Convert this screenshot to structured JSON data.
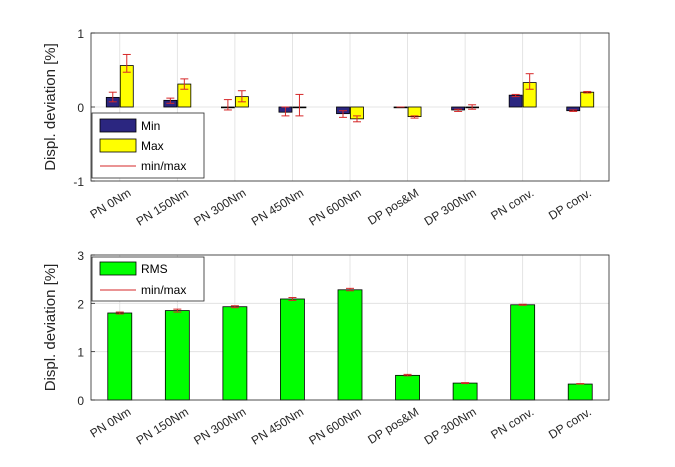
{
  "colors": {
    "min": "#2b2680",
    "max": "#ffff00",
    "rms": "#00ff00",
    "errbar": "#d62728",
    "grid": "#dedede",
    "axis": "#262626"
  },
  "chart_data": [
    {
      "type": "bar",
      "ylabel": "Displ. deviation [%]",
      "ylim": [
        -1,
        1
      ],
      "yticks": [
        "-1",
        "0",
        "1"
      ],
      "grid": true,
      "legend_position": "lower-left",
      "categories": [
        "PN 0Nm",
        "PN 150Nm",
        "PN 300Nm",
        "PN 450Nm",
        "PN 600Nm",
        "DP pos&M",
        "DP 300Nm",
        "PN conv.",
        "DP conv."
      ],
      "series": [
        {
          "name": "Min",
          "values": [
            0.13,
            0.09,
            0.0,
            -0.07,
            -0.09,
            0.0,
            -0.04,
            0.16,
            -0.05
          ],
          "err_low": [
            0.07,
            0.05,
            -0.04,
            -0.12,
            -0.14,
            0.0,
            -0.06,
            0.14,
            -0.06
          ],
          "err_high": [
            0.2,
            0.12,
            0.1,
            0.0,
            -0.05,
            0.0,
            -0.03,
            0.17,
            -0.04
          ]
        },
        {
          "name": "Max",
          "values": [
            0.56,
            0.31,
            0.14,
            0.0,
            -0.16,
            -0.13,
            0.0,
            0.33,
            0.2
          ],
          "err_low": [
            0.47,
            0.24,
            0.07,
            -0.12,
            -0.2,
            -0.15,
            -0.03,
            0.24,
            0.19
          ],
          "err_high": [
            0.71,
            0.38,
            0.22,
            0.17,
            -0.12,
            -0.12,
            0.03,
            0.45,
            0.21
          ]
        }
      ],
      "legend": [
        "Min",
        "Max",
        "min/max"
      ]
    },
    {
      "type": "bar",
      "ylabel": "Displ. deviation [%]",
      "ylim": [
        0,
        3
      ],
      "yticks": [
        "0",
        "1",
        "2",
        "3"
      ],
      "grid": true,
      "legend_position": "top-left",
      "categories": [
        "PN 0Nm",
        "PN 150Nm",
        "PN 300Nm",
        "PN 450Nm",
        "PN 600Nm",
        "DP pos&M",
        "DP 300Nm",
        "PN conv.",
        "DP conv."
      ],
      "series": [
        {
          "name": "RMS",
          "values": [
            1.8,
            1.85,
            1.93,
            2.09,
            2.28,
            0.51,
            0.35,
            1.97,
            0.33
          ],
          "err_low": [
            1.78,
            1.82,
            1.91,
            2.06,
            2.26,
            0.5,
            0.34,
            1.96,
            0.33
          ],
          "err_high": [
            1.82,
            1.88,
            1.95,
            2.12,
            2.31,
            0.53,
            0.36,
            1.98,
            0.34
          ]
        }
      ],
      "legend": [
        "RMS",
        "min/max"
      ]
    }
  ]
}
